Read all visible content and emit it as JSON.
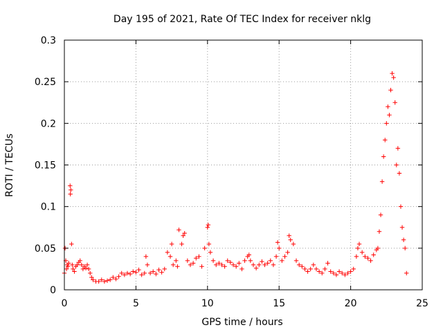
{
  "chart_data": {
    "type": "scatter",
    "title": "Day 195 of 2021, Rate Of TEC Index for receiver nklg",
    "xlabel": "GPS time / hours",
    "ylabel": "ROTI / TECUs",
    "xlim": [
      0,
      25
    ],
    "ylim": [
      0,
      0.3
    ],
    "xticks": [
      0,
      5,
      10,
      15,
      20,
      25
    ],
    "xtick_labels": [
      "0",
      "5",
      "10",
      "15",
      "20",
      "25"
    ],
    "yticks": [
      0,
      0.05,
      0.1,
      0.15,
      0.2,
      0.25,
      0.3
    ],
    "ytick_labels": [
      "0",
      "0.05",
      "0.1",
      "0.15",
      "0.2",
      "0.25",
      "0.3"
    ],
    "grid": true,
    "marker": "+",
    "series": [
      {
        "color": "#ff0000",
        "x": [
          0.0,
          0.05,
          0.1,
          0.15,
          0.2,
          0.25,
          0.3,
          0.4,
          0.42,
          0.45,
          0.5,
          0.55,
          0.6,
          0.7,
          0.8,
          0.9,
          1.0,
          1.1,
          1.2,
          1.3,
          1.4,
          1.5,
          1.6,
          1.7,
          1.8,
          1.9,
          2.0,
          2.2,
          2.4,
          2.6,
          2.8,
          3.0,
          3.2,
          3.4,
          3.6,
          3.8,
          4.0,
          4.2,
          4.4,
          4.6,
          4.8,
          5.0,
          5.2,
          5.4,
          5.6,
          5.7,
          5.8,
          6.0,
          6.2,
          6.4,
          6.6,
          6.8,
          7.0,
          7.2,
          7.4,
          7.5,
          7.6,
          7.8,
          7.9,
          8.0,
          8.2,
          8.3,
          8.4,
          8.6,
          8.8,
          9.0,
          9.2,
          9.4,
          9.6,
          9.8,
          10.0,
          10.05,
          10.1,
          10.2,
          10.4,
          10.6,
          10.8,
          11.0,
          11.2,
          11.4,
          11.6,
          11.8,
          12.0,
          12.2,
          12.4,
          12.6,
          12.8,
          12.9,
          13.0,
          13.2,
          13.4,
          13.6,
          13.8,
          14.0,
          14.2,
          14.4,
          14.6,
          14.8,
          14.9,
          15.0,
          15.2,
          15.4,
          15.6,
          15.7,
          15.8,
          16.0,
          16.2,
          16.4,
          16.6,
          16.8,
          17.0,
          17.2,
          17.4,
          17.6,
          17.8,
          18.0,
          18.2,
          18.4,
          18.6,
          18.8,
          19.0,
          19.2,
          19.4,
          19.6,
          19.8,
          20.0,
          20.2,
          20.4,
          20.5,
          20.6,
          20.8,
          21.0,
          21.2,
          21.4,
          21.6,
          21.8,
          21.9,
          22.0,
          22.1,
          22.2,
          22.3,
          22.4,
          22.5,
          22.6,
          22.7,
          22.8,
          22.9,
          23.0,
          23.1,
          23.2,
          23.3,
          23.4,
          23.5,
          23.6,
          23.7,
          23.8,
          23.9
        ],
        "y": [
          0.02,
          0.05,
          0.035,
          0.025,
          0.03,
          0.028,
          0.032,
          0.125,
          0.115,
          0.12,
          0.055,
          0.03,
          0.025,
          0.022,
          0.028,
          0.03,
          0.033,
          0.035,
          0.03,
          0.025,
          0.028,
          0.026,
          0.03,
          0.025,
          0.02,
          0.015,
          0.012,
          0.01,
          0.01,
          0.012,
          0.01,
          0.011,
          0.012,
          0.015,
          0.013,
          0.016,
          0.02,
          0.018,
          0.02,
          0.019,
          0.022,
          0.021,
          0.024,
          0.018,
          0.02,
          0.04,
          0.03,
          0.02,
          0.022,
          0.019,
          0.024,
          0.021,
          0.025,
          0.045,
          0.04,
          0.055,
          0.03,
          0.035,
          0.028,
          0.072,
          0.055,
          0.065,
          0.068,
          0.035,
          0.03,
          0.032,
          0.038,
          0.04,
          0.028,
          0.05,
          0.075,
          0.078,
          0.055,
          0.045,
          0.035,
          0.03,
          0.032,
          0.03,
          0.028,
          0.035,
          0.033,
          0.03,
          0.028,
          0.032,
          0.025,
          0.035,
          0.04,
          0.042,
          0.035,
          0.03,
          0.026,
          0.03,
          0.034,
          0.03,
          0.032,
          0.035,
          0.03,
          0.04,
          0.057,
          0.05,
          0.035,
          0.04,
          0.045,
          0.065,
          0.06,
          0.055,
          0.035,
          0.03,
          0.028,
          0.025,
          0.022,
          0.025,
          0.03,
          0.025,
          0.022,
          0.02,
          0.025,
          0.032,
          0.022,
          0.02,
          0.018,
          0.022,
          0.02,
          0.018,
          0.02,
          0.022,
          0.025,
          0.04,
          0.05,
          0.055,
          0.045,
          0.04,
          0.038,
          0.035,
          0.042,
          0.048,
          0.05,
          0.07,
          0.09,
          0.13,
          0.16,
          0.18,
          0.2,
          0.22,
          0.21,
          0.24,
          0.26,
          0.255,
          0.225,
          0.15,
          0.17,
          0.14,
          0.1,
          0.075,
          0.06,
          0.05,
          0.02
        ]
      }
    ]
  }
}
